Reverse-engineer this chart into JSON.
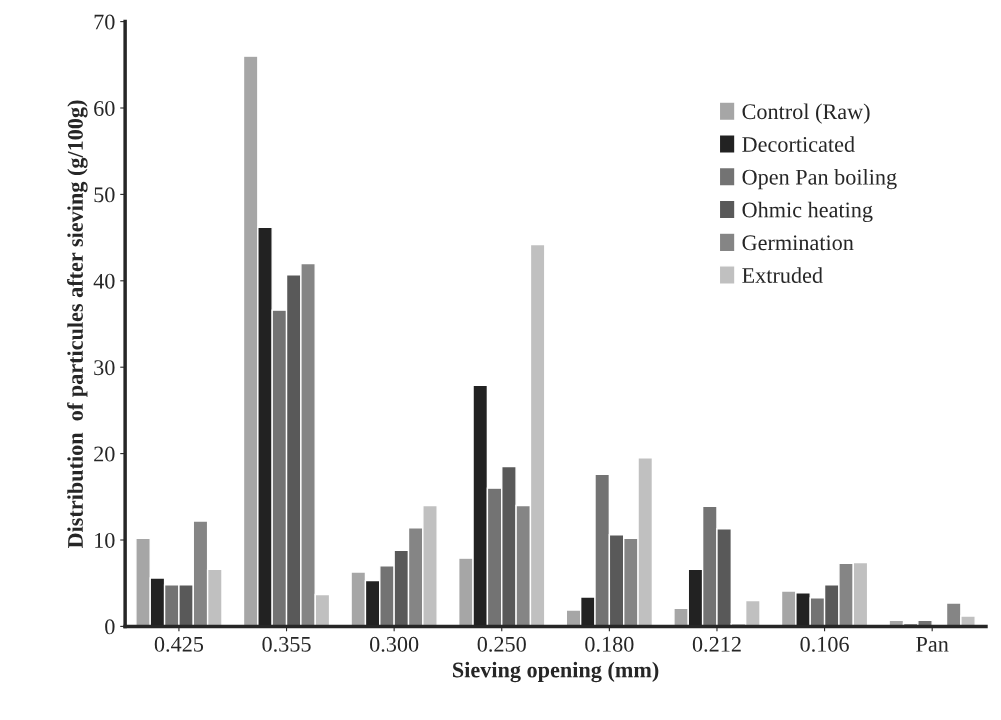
{
  "chart_data": {
    "type": "bar",
    "xlabel": "Sieving opening (mm)",
    "ylabel": "Distribution  of particules after sieving (g/100g)",
    "categories": [
      "0.425",
      "0.355",
      "0.300",
      "0.250",
      "0.180",
      "0.212",
      "0.106",
      "Pan"
    ],
    "series": [
      {
        "name": "Control (Raw)",
        "color": "#a6a6a6",
        "values": [
          10.2,
          66,
          6.3,
          7.9,
          1.9,
          2.1,
          4.1,
          0.7
        ]
      },
      {
        "name": "Decorticated",
        "color": "#222222",
        "values": [
          5.6,
          46.2,
          5.3,
          27.9,
          3.4,
          6.6,
          3.9,
          0.3
        ]
      },
      {
        "name": "Open Pan boiling",
        "color": "#737373",
        "values": [
          4.8,
          36.6,
          7.0,
          16,
          17.6,
          13.9,
          3.3,
          0.7
        ]
      },
      {
        "name": "Ohmic heating",
        "color": "#595959",
        "values": [
          4.8,
          40.7,
          8.8,
          18.5,
          10.6,
          11.3,
          4.8,
          null
        ]
      },
      {
        "name": "Germination",
        "color": "#858585",
        "values": [
          12.2,
          42,
          11.4,
          14,
          10.2,
          0.3,
          7.3,
          2.7
        ]
      },
      {
        "name": "Extruded",
        "color": "#c0c0c0",
        "values": [
          6.6,
          3.7,
          14,
          44.2,
          19.5,
          3.0,
          7.4,
          1.2
        ]
      }
    ],
    "ylim": [
      0,
      70
    ],
    "yticks": [
      0,
      10,
      20,
      30,
      40,
      50,
      60,
      70
    ],
    "grid": false,
    "legend": "top right"
  }
}
